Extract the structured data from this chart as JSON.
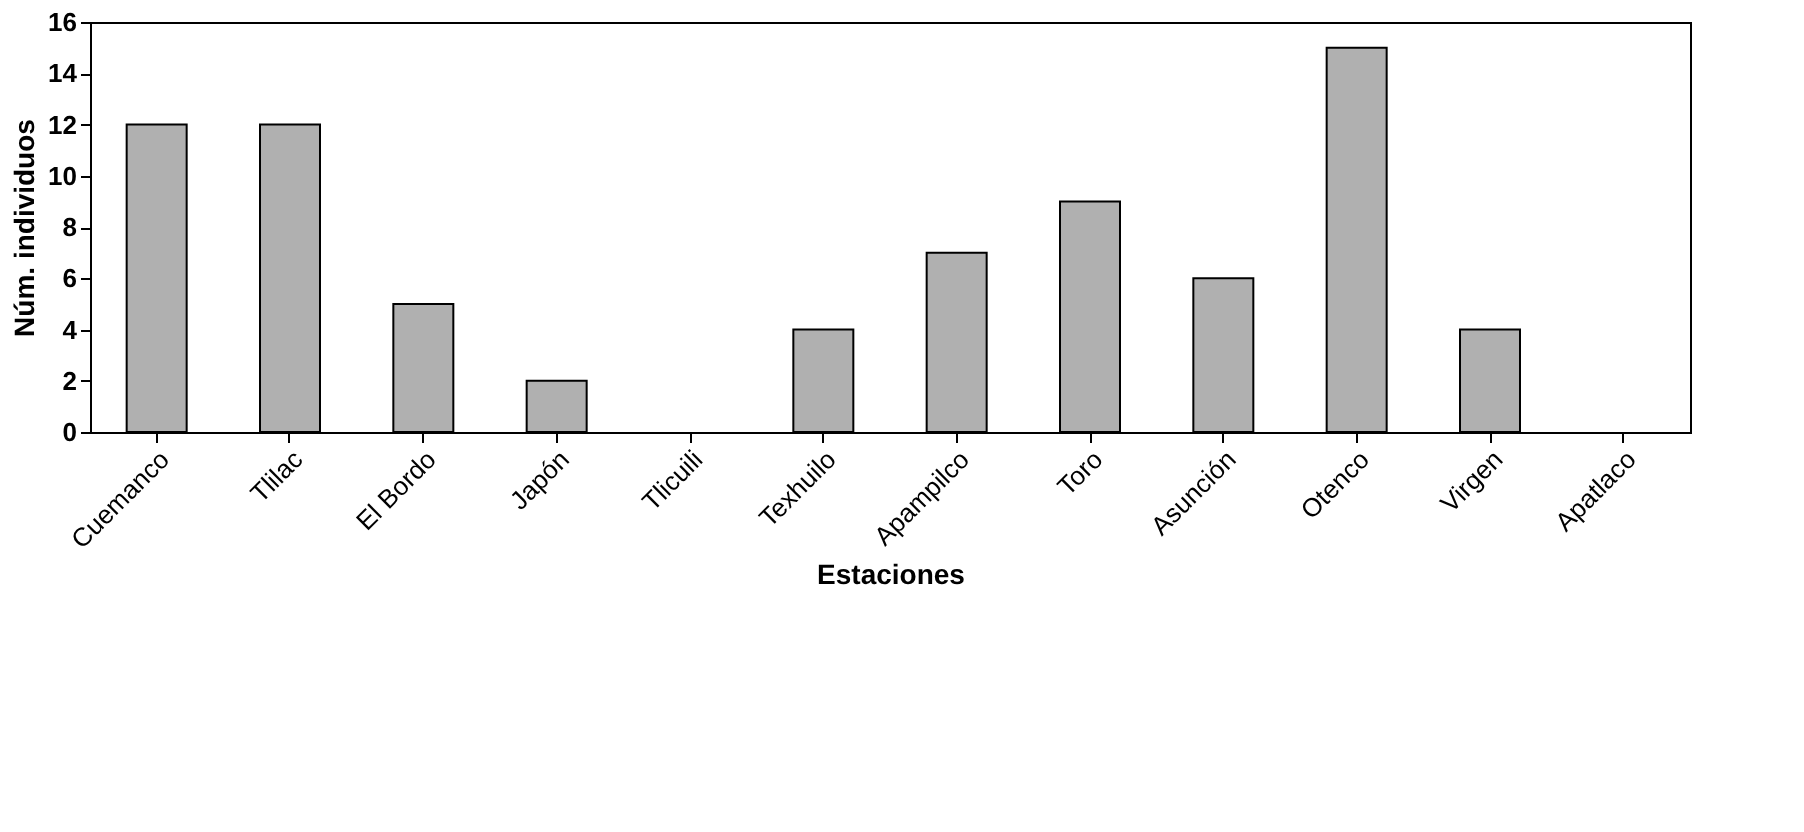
{
  "chart_data": {
    "type": "bar",
    "xlabel": "Estaciones",
    "ylabel": "Núm. individuos",
    "categories": [
      "Cuemanco",
      "Tlilac",
      "El Bordo",
      "Japón",
      "Tlicuili",
      "Texhuilo",
      "Apampilco",
      "Toro",
      "Asunción",
      "Otenco",
      "Virgen",
      "Apatlaco"
    ],
    "values": [
      12,
      12,
      5,
      2,
      0,
      4,
      7,
      9,
      6,
      15,
      4,
      0
    ],
    "color": "#b0b0b0",
    "ylim": [
      0,
      16
    ],
    "yticks": [
      0,
      2,
      4,
      6,
      8,
      10,
      12,
      14,
      16
    ],
    "grid": false
  }
}
